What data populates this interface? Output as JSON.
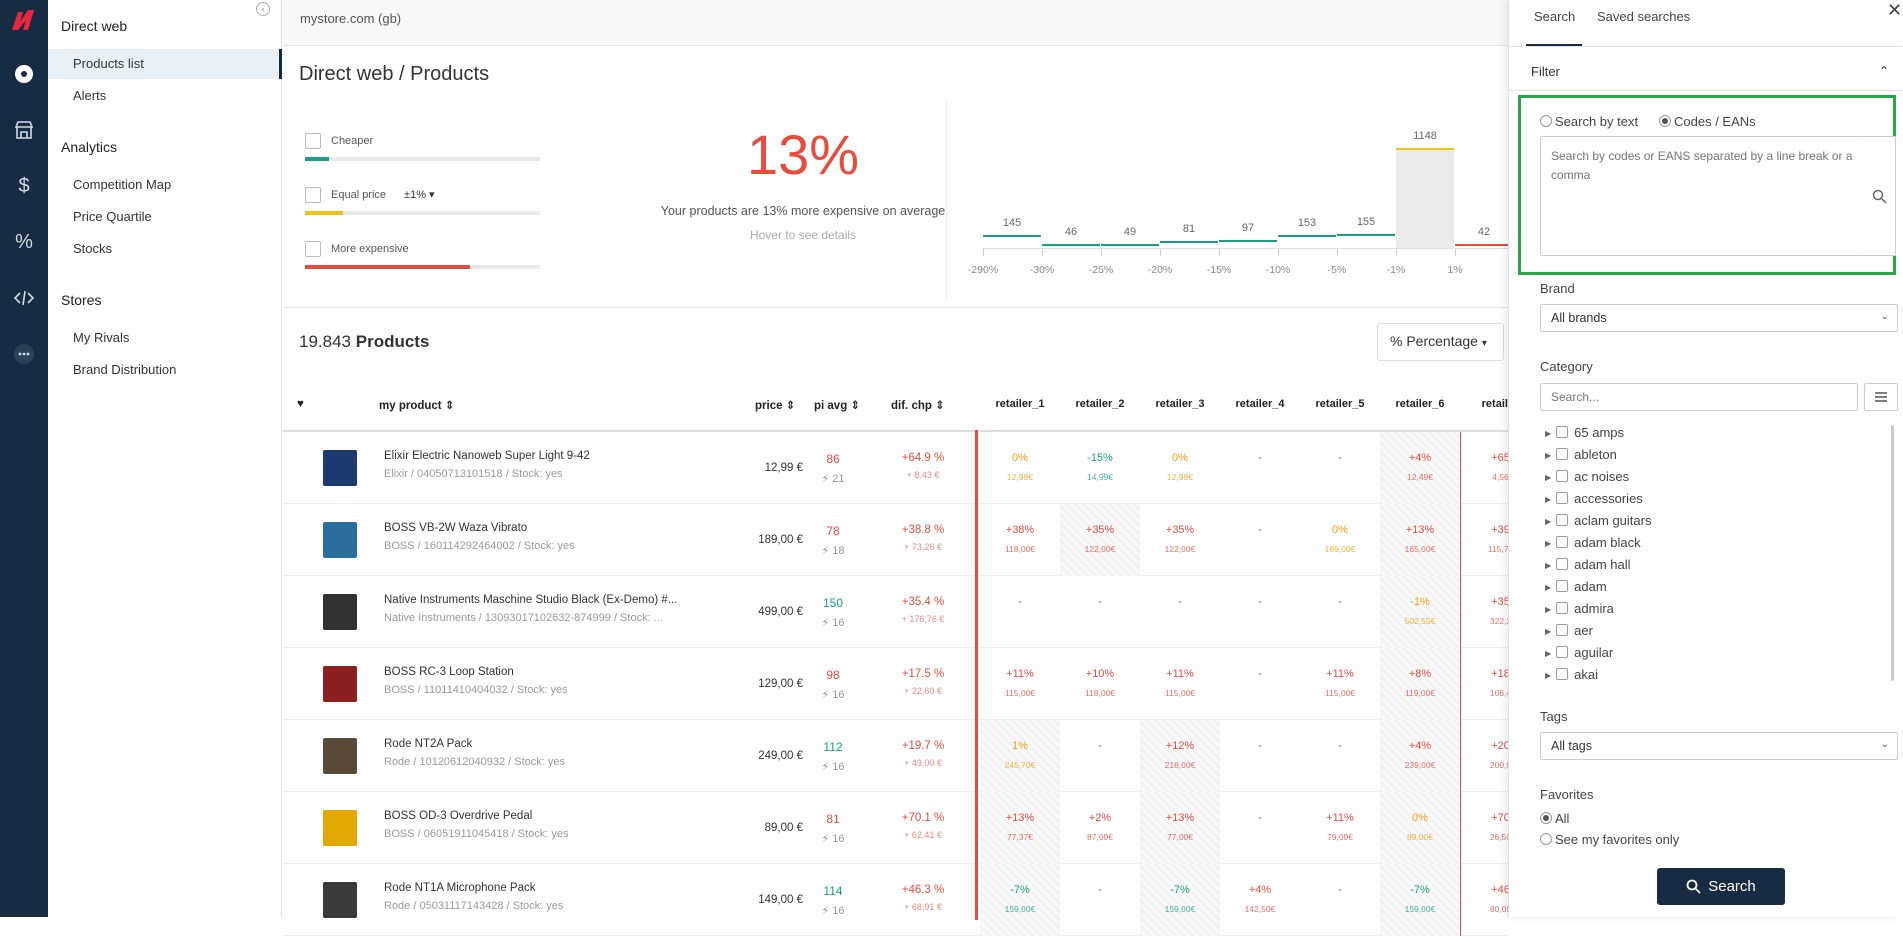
{
  "rail": {
    "icons": [
      "logo-icon",
      "dashboard-icon",
      "store-icon",
      "dollar-icon",
      "percent-icon",
      "code-icon",
      "more-icon"
    ]
  },
  "sidebar": {
    "section_direct": "Direct web",
    "products_list": "Products list",
    "alerts": "Alerts",
    "section_analytics": "Analytics",
    "competition_map": "Competition Map",
    "price_quartile": "Price Quartile",
    "stocks": "Stocks",
    "section_stores": "Stores",
    "my_rivals": "My Rivals",
    "brand_distribution": "Brand Distribution"
  },
  "header": {
    "store": "mystore.com (gb)",
    "title": "Direct web / Products"
  },
  "summary": {
    "cheaper": "Cheaper",
    "equal": "Equal price",
    "equal_range": "±1%",
    "more": "More expensive",
    "cheaper_share": 0.1,
    "equal_share": 0.16,
    "more_share": 0.7,
    "big_pct": "13%",
    "avg_text": "Your products are 13% more expensive on average",
    "hover_text": "Hover to see details"
  },
  "histogram": {
    "bars": [
      {
        "count": "145",
        "label": "-290%",
        "color": "#16a085"
      },
      {
        "count": "46",
        "label": "-30%",
        "color": "#16a085"
      },
      {
        "count": "49",
        "label": "-25%",
        "color": "#16a085"
      },
      {
        "count": "81",
        "label": "-20%",
        "color": "#16a085"
      },
      {
        "count": "97",
        "label": "-15%",
        "color": "#16a085"
      },
      {
        "count": "153",
        "label": "-10%",
        "color": "#16a085"
      },
      {
        "count": "155",
        "label": "-5%",
        "color": "#16a085"
      },
      {
        "count": "1148",
        "label": "-1%",
        "color": "#f1c40f"
      },
      {
        "count": "42",
        "label": "1%",
        "color": "#e74c3c"
      }
    ]
  },
  "products": {
    "count": "19.843",
    "label": "Products",
    "view_mode": "Percentage",
    "columns": {
      "name": "my product",
      "price": "price",
      "pi": "pi avg",
      "dif": "dif. chp"
    },
    "retailers": [
      "retailer_1",
      "retailer_2",
      "retailer_3",
      "retailer_4",
      "retailer_5",
      "retailer_6",
      "retailer"
    ],
    "rows": [
      {
        "name": "Elixir Electric Nanoweb Super Light 9-42",
        "sub": "Elixir / 04050713101518 / Stock: yes",
        "price": "12,99 €",
        "pi": "86",
        "pi_color": "#e74c3c",
        "pis": "21",
        "dif": "+64.9 %",
        "difs": "+ 8,43 €",
        "cells": [
          {
            "v": "0%",
            "s": "12,99€",
            "c": "#f39c12"
          },
          {
            "v": "-15%",
            "s": "14,99€",
            "c": "#16a085"
          },
          {
            "v": "0%",
            "s": "12,99€",
            "c": "#f39c12"
          },
          {
            "v": "-",
            "s": "",
            "c": "#555"
          },
          {
            "v": "-",
            "s": "",
            "c": "#555"
          },
          {
            "v": "+4%",
            "s": "12,49€",
            "c": "#e74c3c"
          },
          {
            "v": "+65",
            "s": "4,56",
            "c": "#e74c3c"
          }
        ]
      },
      {
        "name": "BOSS VB-2W Waza Vibrato",
        "sub": "BOSS / 160114292464002 / Stock: yes",
        "price": "189,00 €",
        "pi": "78",
        "pi_color": "#e74c3c",
        "pis": "18",
        "dif": "+38.8 %",
        "difs": "+ 73,26 €",
        "cells": [
          {
            "v": "+38%",
            "s": "118,00€",
            "c": "#e74c3c"
          },
          {
            "v": "+35%",
            "s": "122,00€",
            "c": "#e74c3c"
          },
          {
            "v": "+35%",
            "s": "122,00€",
            "c": "#e74c3c"
          },
          {
            "v": "-",
            "s": "",
            "c": "#555"
          },
          {
            "v": "0%",
            "s": "189,00€",
            "c": "#f39c12"
          },
          {
            "v": "+13%",
            "s": "165,00€",
            "c": "#e74c3c"
          },
          {
            "v": "+39",
            "s": "115,74",
            "c": "#e74c3c"
          }
        ]
      },
      {
        "name": "Native Instruments Maschine Studio Black (Ex-Demo) #...",
        "sub": "Native Instruments / 13093017102632-874999 / Stock: ...",
        "price": "499,00 €",
        "pi": "150",
        "pi_color": "#16a085",
        "pis": "16",
        "dif": "+35.4 %",
        "difs": "+ 176,76 €",
        "cells": [
          {
            "v": "-",
            "s": "",
            "c": "#555"
          },
          {
            "v": "-",
            "s": "",
            "c": "#555"
          },
          {
            "v": "-",
            "s": "",
            "c": "#555"
          },
          {
            "v": "-",
            "s": "",
            "c": "#555"
          },
          {
            "v": "-",
            "s": "",
            "c": "#555"
          },
          {
            "v": "-1%",
            "s": "502,55€",
            "c": "#f39c12"
          },
          {
            "v": "+35",
            "s": "322,2",
            "c": "#e74c3c"
          }
        ]
      },
      {
        "name": "BOSS RC-3 Loop Station",
        "sub": "BOSS / 11011410404032 / Stock: yes",
        "price": "129,00 €",
        "pi": "98",
        "pi_color": "#e74c3c",
        "pis": "16",
        "dif": "+17.5 %",
        "difs": "+ 22,60 €",
        "cells": [
          {
            "v": "+11%",
            "s": "115,00€",
            "c": "#e74c3c"
          },
          {
            "v": "+10%",
            "s": "118,00€",
            "c": "#e74c3c"
          },
          {
            "v": "+11%",
            "s": "115,00€",
            "c": "#e74c3c"
          },
          {
            "v": "-",
            "s": "",
            "c": "#555"
          },
          {
            "v": "+11%",
            "s": "115,00€",
            "c": "#e74c3c"
          },
          {
            "v": "+8%",
            "s": "119,00€",
            "c": "#e74c3c"
          },
          {
            "v": "+18",
            "s": "106,4",
            "c": "#e74c3c"
          }
        ]
      },
      {
        "name": "Rode NT2A Pack",
        "sub": "Rode / 10120612040932 / Stock: yes",
        "price": "249,00 €",
        "pi": "112",
        "pi_color": "#16a085",
        "pis": "16",
        "dif": "+19.7 %",
        "difs": "+ 49,00 €",
        "cells": [
          {
            "v": "1%",
            "s": "245,70€",
            "c": "#f39c12"
          },
          {
            "v": "-",
            "s": "",
            "c": "#555"
          },
          {
            "v": "+12%",
            "s": "218,00€",
            "c": "#e74c3c"
          },
          {
            "v": "-",
            "s": "",
            "c": "#555"
          },
          {
            "v": "-",
            "s": "",
            "c": "#555"
          },
          {
            "v": "+4%",
            "s": "239,00€",
            "c": "#e74c3c"
          },
          {
            "v": "+20",
            "s": "200,0",
            "c": "#e74c3c"
          }
        ]
      },
      {
        "name": "BOSS OD-3 Overdrive Pedal",
        "sub": "BOSS / 06051911045418 / Stock: yes",
        "price": "89,00 €",
        "pi": "81",
        "pi_color": "#e74c3c",
        "pis": "16",
        "dif": "+70.1 %",
        "difs": "+ 62,41 €",
        "cells": [
          {
            "v": "+13%",
            "s": "77,37€",
            "c": "#e74c3c"
          },
          {
            "v": "+2%",
            "s": "87,00€",
            "c": "#e74c3c"
          },
          {
            "v": "+13%",
            "s": "77,00€",
            "c": "#e74c3c"
          },
          {
            "v": "-",
            "s": "",
            "c": "#555"
          },
          {
            "v": "+11%",
            "s": "79,00€",
            "c": "#e74c3c"
          },
          {
            "v": "0%",
            "s": "89,00€",
            "c": "#f39c12"
          },
          {
            "v": "+70",
            "s": "26,50",
            "c": "#e74c3c"
          }
        ]
      },
      {
        "name": "Rode NT1A Microphone Pack",
        "sub": "Rode / 05031117143428 / Stock: yes",
        "price": "149,00 €",
        "pi": "114",
        "pi_color": "#16a085",
        "pis": "16",
        "dif": "+46.3 %",
        "difs": "+ 68,91 €",
        "cells": [
          {
            "v": "-7%",
            "s": "159,00€",
            "c": "#16a085"
          },
          {
            "v": "-",
            "s": "",
            "c": "#555"
          },
          {
            "v": "-7%",
            "s": "159,00€",
            "c": "#16a085"
          },
          {
            "v": "+4%",
            "s": "142,50€",
            "c": "#e74c3c"
          },
          {
            "v": "-",
            "s": "",
            "c": "#555"
          },
          {
            "v": "-7%",
            "s": "159,00€",
            "c": "#16a085"
          },
          {
            "v": "+46",
            "s": "80,09",
            "c": "#e74c3c"
          }
        ]
      }
    ]
  },
  "panel": {
    "tab_search": "Search",
    "tab_saved": "Saved searches",
    "filter": "Filter",
    "search_by_text": "Search by text",
    "codes_eans": "Codes / EANs",
    "codes_placeholder": "Search by codes or EANS separated by a line break or a comma",
    "brand_label": "Brand",
    "brand_value": "All brands",
    "category_label": "Category",
    "category_placeholder": "Search...",
    "categories": [
      "65 amps",
      "ableton",
      "ac noises",
      "accessories",
      "aclam guitars",
      "adam black",
      "adam hall",
      "adam",
      "admira",
      "aer",
      "aguilar",
      "akai"
    ],
    "tags_label": "Tags",
    "tags_value": "All tags",
    "favorites_label": "Favorites",
    "fav_all": "All",
    "fav_mine": "See my favorites only",
    "search_button": "Search"
  }
}
